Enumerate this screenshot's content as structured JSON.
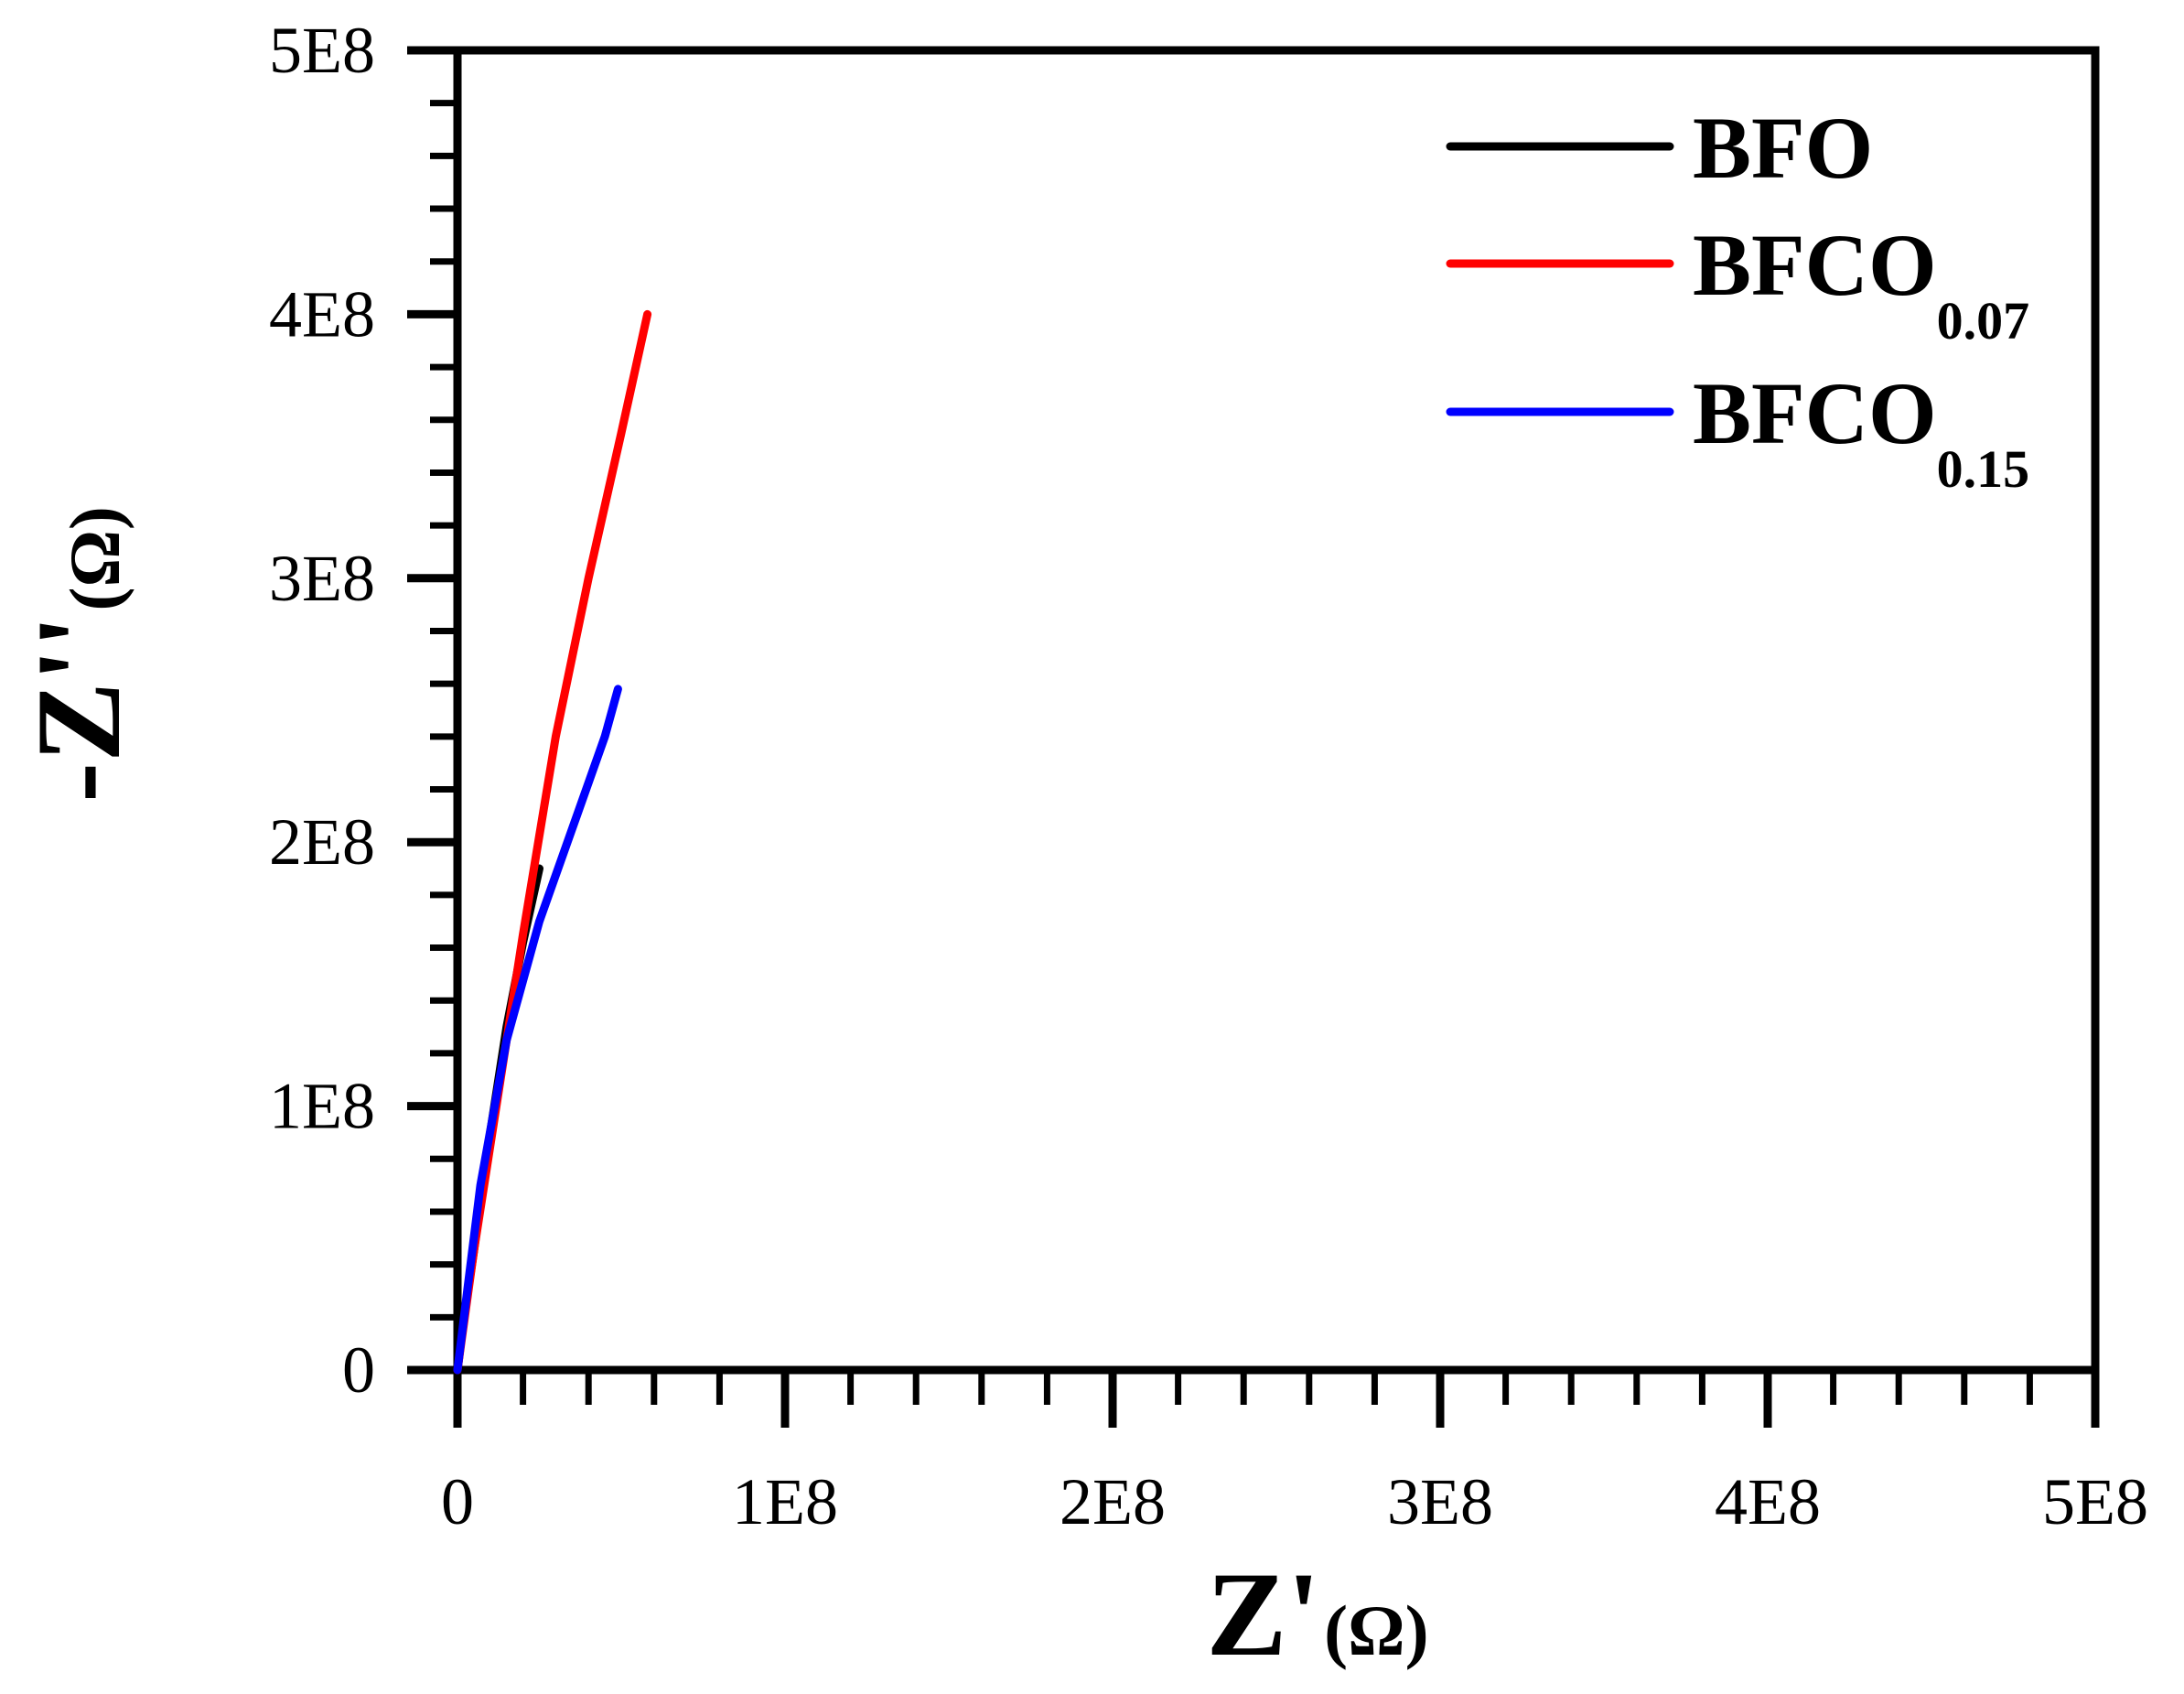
{
  "chart_data": {
    "type": "line",
    "xlabel": {
      "main": "Z'",
      "unit": "(Ω)"
    },
    "ylabel": {
      "main": "-Z''",
      "unit": "(Ω)"
    },
    "xlim": [
      0,
      500000000
    ],
    "ylim": [
      0,
      500000000
    ],
    "x_tick_labels": [
      "0",
      "1E8",
      "2E8",
      "3E8",
      "4E8",
      "5E8"
    ],
    "y_tick_labels": [
      "0",
      "1E8",
      "2E8",
      "3E8",
      "4E8",
      "5E8"
    ],
    "grid": false,
    "legend_position": "top-right",
    "series": [
      {
        "name": "BFO",
        "name_main": "BFO",
        "name_sub": "",
        "color": "#000000",
        "x": [
          0,
          2000000,
          5000000,
          10000000,
          15000000,
          20000000,
          25000000
        ],
        "y": [
          0,
          20000000,
          45000000,
          90000000,
          130000000,
          162000000,
          190000000
        ]
      },
      {
        "name": "BFCO0.07",
        "name_main": "BFCO",
        "name_sub": "0.07",
        "color": "#ff0000",
        "x": [
          0,
          5000000,
          10000000,
          20000000,
          30000000,
          40000000,
          50000000,
          58000000
        ],
        "y": [
          0,
          45000000,
          85000000,
          165000000,
          240000000,
          300000000,
          355000000,
          400000000
        ]
      },
      {
        "name": "BFCO0.15",
        "name_main": "BFCO",
        "name_sub": "0.15",
        "color": "#0000ff",
        "x": [
          0,
          3000000,
          7000000,
          15000000,
          25000000,
          35000000,
          45000000,
          49000000
        ],
        "y": [
          0,
          30000000,
          70000000,
          125000000,
          170000000,
          205000000,
          240000000,
          258000000
        ]
      }
    ]
  }
}
